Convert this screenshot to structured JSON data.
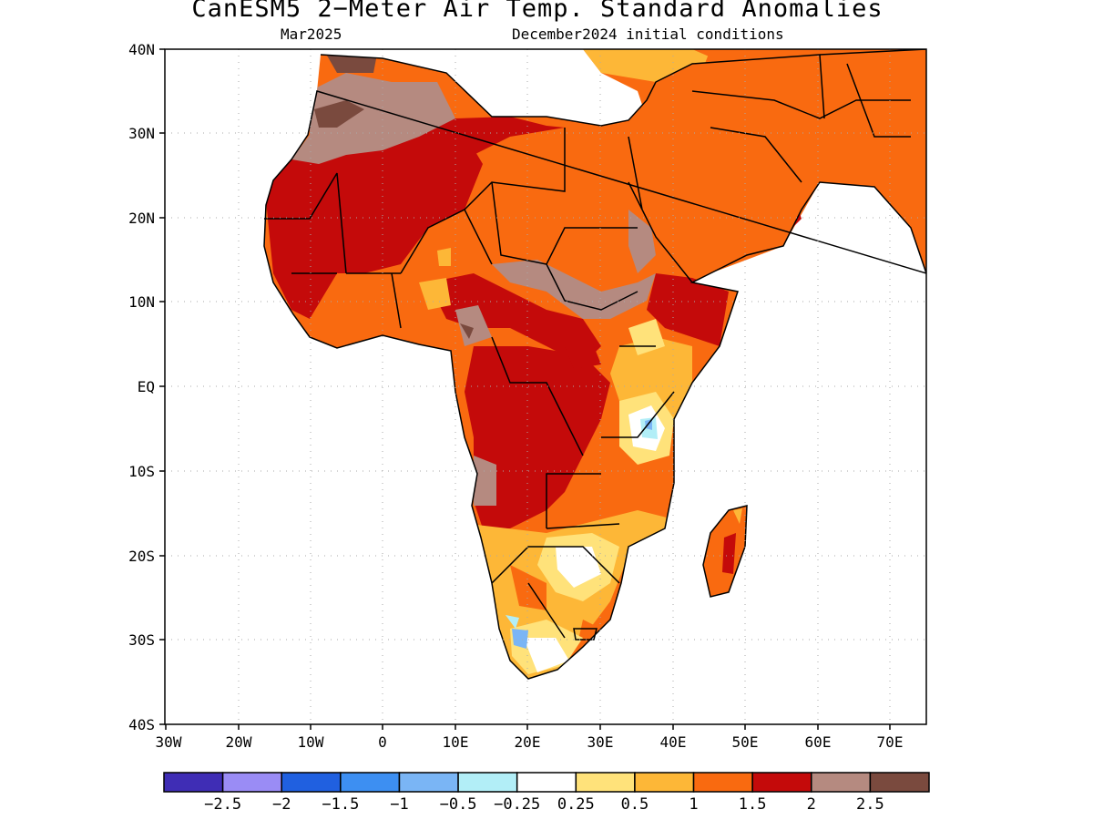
{
  "title": "CanESM5 2−Meter Air Temp. Standard Anomalies",
  "valid_month": "Mar2025",
  "init_label": "December2024 initial conditions",
  "map": {
    "lon_ticks": [
      "30W",
      "20W",
      "10W",
      "0",
      "10E",
      "20E",
      "30E",
      "40E",
      "50E",
      "60E",
      "70E"
    ],
    "lat_ticks": [
      "40N",
      "30N",
      "20N",
      "10N",
      "EQ",
      "10S",
      "20S",
      "30S",
      "40S"
    ],
    "extent": {
      "lon_min": -30,
      "lon_max": 75,
      "lat_min": -40,
      "lat_max": 40
    },
    "gridlines": "dotted"
  },
  "colorbar": {
    "colors": [
      "#3f2db5",
      "#9a8cf5",
      "#2060e0",
      "#3d8ff2",
      "#7ab5f5",
      "#b2eef7",
      "#ffffff",
      "#ffe27a",
      "#fdb737",
      "#f96a10",
      "#c40a0a",
      "#b58a80",
      "#7a4a3e"
    ],
    "labels": [
      "−2.5",
      "−2",
      "−1.5",
      "−1",
      "−0.5",
      "−0.25",
      "0.25",
      "0.5",
      "1",
      "1.5",
      "2",
      "2.5"
    ]
  }
}
